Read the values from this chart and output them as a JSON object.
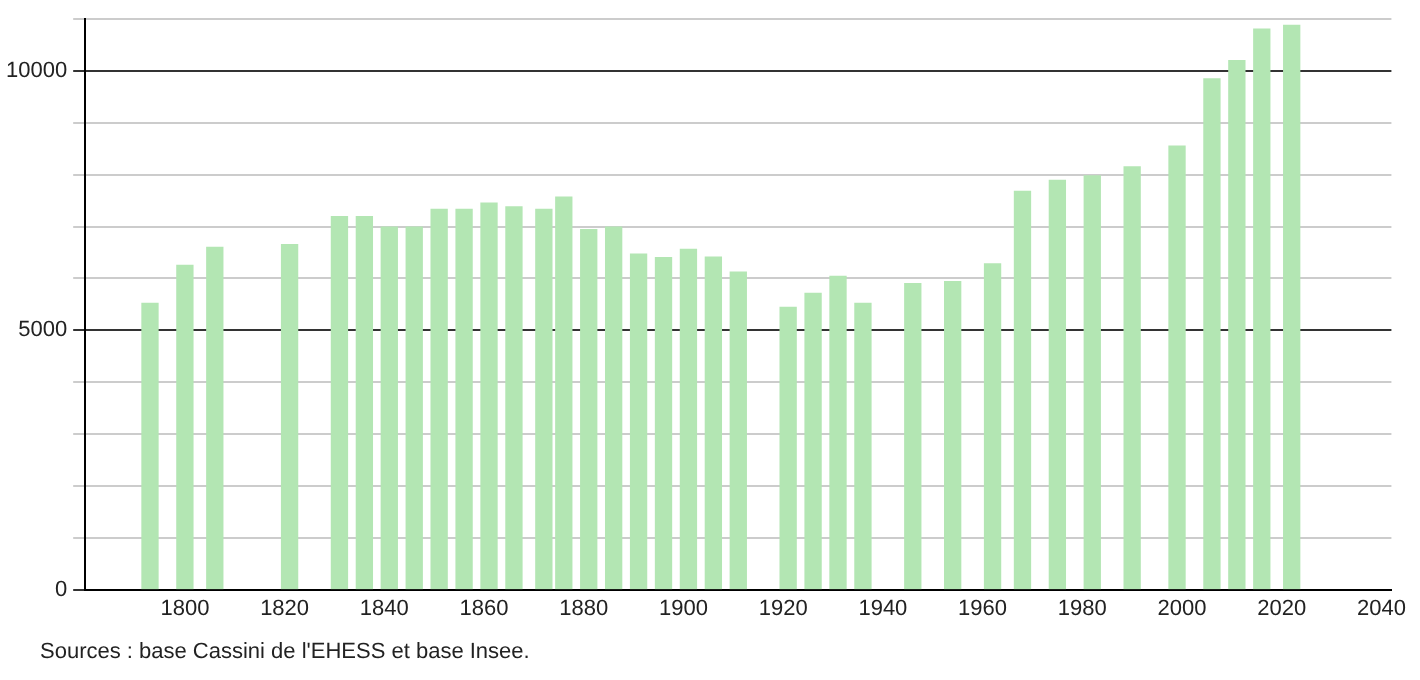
{
  "chart_data": {
    "type": "bar",
    "x": [
      1793,
      1800,
      1806,
      1821,
      1831,
      1836,
      1841,
      1846,
      1851,
      1856,
      1861,
      1866,
      1872,
      1876,
      1881,
      1886,
      1891,
      1896,
      1901,
      1906,
      1911,
      1921,
      1926,
      1931,
      1936,
      1946,
      1954,
      1962,
      1968,
      1975,
      1982,
      1990,
      1999,
      2006,
      2011,
      2016,
      2022
    ],
    "values": [
      5520,
      6250,
      6600,
      6650,
      7190,
      7190,
      6990,
      6990,
      7330,
      7330,
      7450,
      7380,
      7330,
      7570,
      6940,
      6990,
      6470,
      6400,
      6560,
      6410,
      6120,
      5440,
      5710,
      6040,
      5520,
      5900,
      5940,
      6280,
      7680,
      7890,
      7980,
      8150,
      8550,
      9850,
      10200,
      10810,
      10880
    ],
    "color": "#b3e6b3",
    "xlim": [
      1780,
      2042
    ],
    "xticks": [
      1800,
      1820,
      1840,
      1860,
      1880,
      1900,
      1920,
      1940,
      1960,
      1980,
      2000,
      2020,
      2040
    ],
    "ylim": [
      0,
      11000
    ],
    "yticks": [
      0,
      {
        "value": 1000,
        "label": null
      },
      {
        "value": 2000,
        "label": null
      },
      {
        "value": 3000,
        "label": null
      },
      {
        "value": 4000,
        "label": null
      },
      5000,
      {
        "value": 6000,
        "label": null
      },
      {
        "value": 7000,
        "label": null
      },
      {
        "value": 8000,
        "label": null
      },
      {
        "value": 9000,
        "label": null
      },
      10000,
      {
        "value": 11000,
        "label": null
      }
    ],
    "grid": "y",
    "annotations": [
      "Sources : base Cassini de l'EHESS et base Insee."
    ]
  }
}
